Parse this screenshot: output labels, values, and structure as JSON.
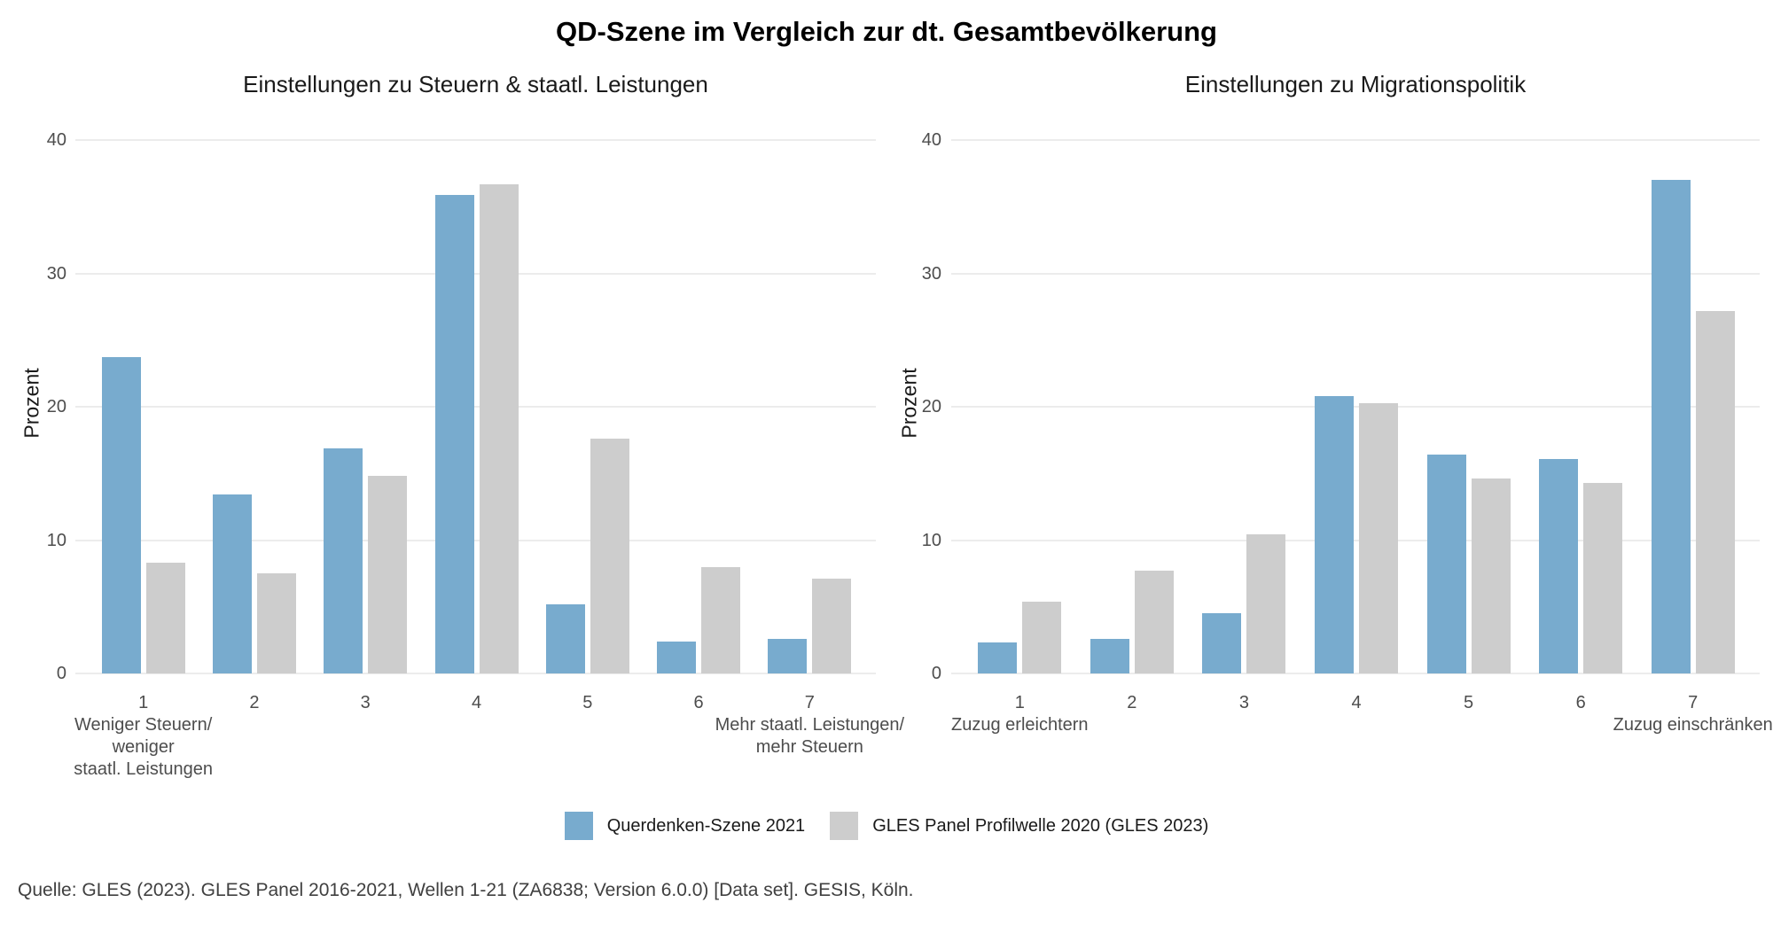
{
  "title": "QD-Szene im Vergleich zur dt. Gesamtbevölkerung",
  "source": "Quelle: GLES (2023). GLES Panel 2016-2021, Wellen 1-21 (ZA6838; Version 6.0.0) [Data set]. GESIS, Köln.",
  "chart_data": [
    {
      "type": "bar",
      "title": "Einstellungen zu Steuern & staatl. Leistungen",
      "xlabel": "",
      "ylabel": "Prozent",
      "ylim": [
        0,
        40
      ],
      "yticks": [
        0,
        10,
        20,
        30,
        40
      ],
      "grid": true,
      "legend_position": "bottom",
      "categories": [
        "1",
        "2",
        "3",
        "4",
        "5",
        "6",
        "7"
      ],
      "sublabels": [
        [
          "Weniger Steuern/",
          "weniger",
          "staatl. Leistungen"
        ],
        [],
        [],
        [],
        [],
        [],
        [
          "Mehr staatl. Leistungen/",
          "mehr Steuern"
        ]
      ],
      "series": [
        {
          "key": "querdenken",
          "name": "Querdenken-Szene 2021",
          "color": "#78abce",
          "values": [
            23.7,
            13.4,
            16.9,
            35.9,
            5.2,
            2.4,
            2.6
          ]
        },
        {
          "key": "gles",
          "name": "GLES Panel Profilwelle 2020 (GLES 2023)",
          "color": "#cdcdcd",
          "values": [
            8.3,
            7.5,
            14.8,
            36.7,
            17.6,
            8.0,
            7.1
          ]
        }
      ]
    },
    {
      "type": "bar",
      "title": "Einstellungen zu Migrationspolitik",
      "xlabel": "",
      "ylabel": "Prozent",
      "ylim": [
        0,
        40
      ],
      "yticks": [
        0,
        10,
        20,
        30,
        40
      ],
      "grid": true,
      "legend_position": "bottom",
      "categories": [
        "1",
        "2",
        "3",
        "4",
        "5",
        "6",
        "7"
      ],
      "sublabels": [
        [
          "Zuzug erleichtern"
        ],
        [],
        [],
        [],
        [],
        [],
        [
          "Zuzug einschränken"
        ]
      ],
      "series": [
        {
          "key": "querdenken",
          "name": "Querdenken-Szene 2021",
          "color": "#78abce",
          "values": [
            2.3,
            2.6,
            4.5,
            20.8,
            16.4,
            16.1,
            37.0
          ]
        },
        {
          "key": "gles",
          "name": "GLES Panel Profilwelle 2020 (GLES 2023)",
          "color": "#cdcdcd",
          "values": [
            5.4,
            7.7,
            10.4,
            20.3,
            14.6,
            14.3,
            27.2
          ]
        }
      ]
    }
  ]
}
